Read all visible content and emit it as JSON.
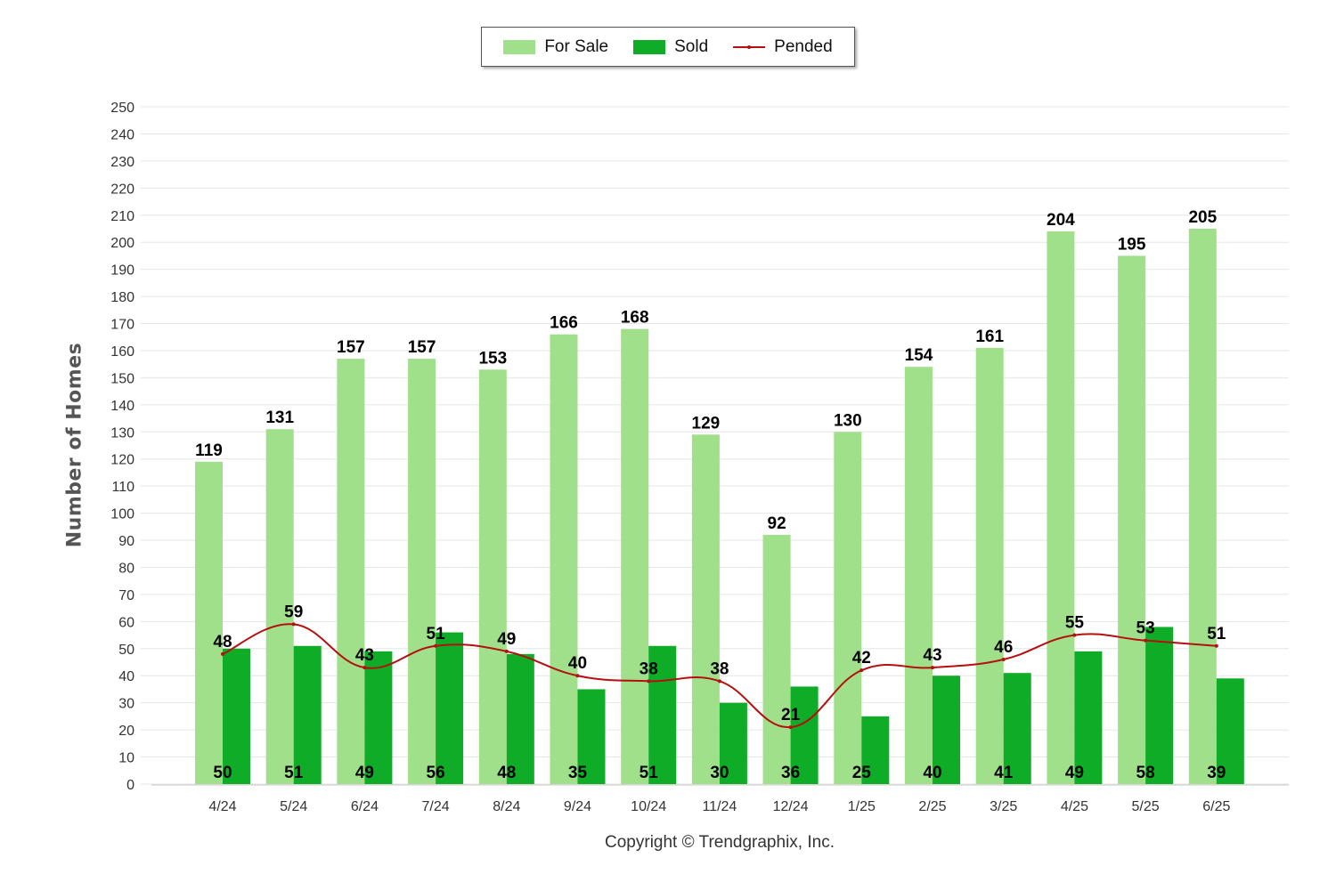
{
  "chart_data": {
    "type": "bar",
    "xlabel": "",
    "ylabel": "Number of Homes",
    "ylim": [
      0,
      250
    ],
    "yticks": [
      0,
      10,
      20,
      30,
      40,
      50,
      60,
      70,
      80,
      90,
      100,
      110,
      120,
      130,
      140,
      150,
      160,
      170,
      180,
      190,
      200,
      210,
      220,
      230,
      240,
      250
    ],
    "grid": true,
    "legend_position": "top-center",
    "categories": [
      "4/24",
      "5/24",
      "6/24",
      "7/24",
      "8/24",
      "9/24",
      "10/24",
      "11/24",
      "12/24",
      "1/25",
      "2/25",
      "3/25",
      "4/25",
      "5/25",
      "6/25"
    ],
    "series": [
      {
        "name": "For Sale",
        "type": "bar",
        "color": "#a0e08a",
        "values": [
          119,
          131,
          157,
          157,
          153,
          166,
          168,
          129,
          92,
          130,
          154,
          161,
          204,
          195,
          205
        ]
      },
      {
        "name": "Sold",
        "type": "bar",
        "color": "#0eac27",
        "values": [
          50,
          51,
          49,
          56,
          48,
          35,
          51,
          30,
          36,
          25,
          40,
          41,
          49,
          58,
          39
        ]
      },
      {
        "name": "Pended",
        "type": "line",
        "color": "#b50f0f",
        "values": [
          48,
          59,
          43,
          51,
          49,
          40,
          38,
          38,
          21,
          42,
          43,
          46,
          55,
          53,
          51
        ]
      }
    ]
  },
  "footer": {
    "copyright": "Copyright © Trendgraphix, Inc."
  }
}
